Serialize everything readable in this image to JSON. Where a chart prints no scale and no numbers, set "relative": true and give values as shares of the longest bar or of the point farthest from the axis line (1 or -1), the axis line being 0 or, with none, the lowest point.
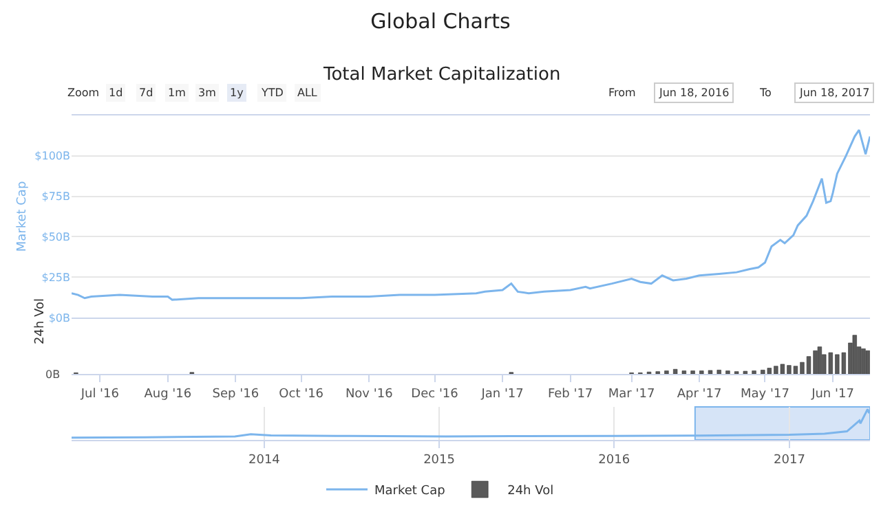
{
  "chart_data": [
    {
      "type": "line",
      "title": "Global Charts",
      "subtitle": "Total Market Capitalization",
      "ylabel": "Market Cap",
      "annotations": [
        "Zoom",
        "1d",
        "7d",
        "1m",
        "3m",
        "1y",
        "YTD",
        "ALL",
        "From",
        "Jun 18, 2016",
        "To",
        "Jun 18, 2017"
      ],
      "xlim": [
        "2016-06-18",
        "2017-06-18"
      ],
      "ylim": [
        0,
        125
      ],
      "yticks": [
        {
          "value": 0,
          "label": "$0B"
        },
        {
          "value": 25,
          "label": "$25B"
        },
        {
          "value": 50,
          "label": "$50B"
        },
        {
          "value": 75,
          "label": "$75B"
        },
        {
          "value": 100,
          "label": "$100B"
        }
      ],
      "tick_labels": "y",
      "grid": "y",
      "legend": "bottom",
      "marker": "none",
      "x": [
        "2016-06-18",
        "2016-06-21",
        "2016-06-24",
        "2016-06-27",
        "2016-07-10",
        "2016-07-25",
        "2016-08-01",
        "2016-08-03",
        "2016-08-15",
        "2016-09-01",
        "2016-09-15",
        "2016-10-01",
        "2016-10-15",
        "2016-11-01",
        "2016-11-15",
        "2016-12-01",
        "2016-12-20",
        "2016-12-24",
        "2017-01-01",
        "2017-01-05",
        "2017-01-08",
        "2017-01-13",
        "2017-01-20",
        "2017-02-01",
        "2017-02-08",
        "2017-02-10",
        "2017-02-20",
        "2017-03-01",
        "2017-03-05",
        "2017-03-10",
        "2017-03-15",
        "2017-03-20",
        "2017-03-26",
        "2017-04-01",
        "2017-04-10",
        "2017-04-18",
        "2017-04-24",
        "2017-04-28",
        "2017-05-01",
        "2017-05-04",
        "2017-05-08",
        "2017-05-10",
        "2017-05-14",
        "2017-05-16",
        "2017-05-20",
        "2017-05-23",
        "2017-05-27",
        "2017-05-29",
        "2017-05-31",
        "2017-06-01",
        "2017-06-03",
        "2017-06-07",
        "2017-06-11",
        "2017-06-13",
        "2017-06-16",
        "2017-06-18"
      ],
      "series": [
        {
          "name": "Market Cap",
          "color": "#7cb5ec",
          "values": [
            15,
            14,
            12,
            13,
            14,
            13,
            13,
            11,
            12,
            12,
            12,
            12,
            13,
            13,
            14,
            14,
            15,
            16,
            17,
            21,
            16,
            15,
            16,
            17,
            19,
            18,
            21,
            24,
            22,
            21,
            26,
            23,
            24,
            26,
            27,
            28,
            30,
            31,
            34,
            44,
            48,
            46,
            51,
            57,
            63,
            72,
            86,
            71,
            72,
            77,
            89,
            100,
            112,
            116,
            101,
            112
          ]
        }
      ]
    },
    {
      "type": "bar",
      "ylabel": "24h Vol",
      "relative": true,
      "annotations": [
        "0B"
      ],
      "legend": "bottom",
      "tick_labels": "x",
      "xlim": [
        "2016-06-18",
        "2017-06-18"
      ],
      "xticks": [
        {
          "value": "2016-07-01",
          "label": "Jul '16"
        },
        {
          "value": "2016-08-01",
          "label": "Aug '16"
        },
        {
          "value": "2016-09-01",
          "label": "Sep '16"
        },
        {
          "value": "2016-10-01",
          "label": "Oct '16"
        },
        {
          "value": "2016-11-01",
          "label": "Nov '16"
        },
        {
          "value": "2016-12-01",
          "label": "Dec '16"
        },
        {
          "value": "2017-01-01",
          "label": "Jan '17"
        },
        {
          "value": "2017-02-01",
          "label": "Feb '17"
        },
        {
          "value": "2017-03-01",
          "label": "Mar '17"
        },
        {
          "value": "2017-04-01",
          "label": "Apr '17"
        },
        {
          "value": "2017-05-01",
          "label": "May '17"
        },
        {
          "value": "2017-06-01",
          "label": "Jun '17"
        }
      ],
      "x": [
        "2016-06-20",
        "2016-08-12",
        "2017-01-05",
        "2017-03-01",
        "2017-03-05",
        "2017-03-09",
        "2017-03-13",
        "2017-03-17",
        "2017-03-21",
        "2017-03-25",
        "2017-03-29",
        "2017-04-02",
        "2017-04-06",
        "2017-04-10",
        "2017-04-14",
        "2017-04-18",
        "2017-04-22",
        "2017-04-26",
        "2017-04-30",
        "2017-05-03",
        "2017-05-06",
        "2017-05-09",
        "2017-05-12",
        "2017-05-15",
        "2017-05-18",
        "2017-05-21",
        "2017-05-24",
        "2017-05-26",
        "2017-05-28",
        "2017-05-31",
        "2017-06-03",
        "2017-06-06",
        "2017-06-09",
        "2017-06-11",
        "2017-06-13",
        "2017-06-15",
        "2017-06-17"
      ],
      "series": [
        {
          "name": "24h Vol",
          "color": "#5a5a5a",
          "values": [
            0.03,
            0.04,
            0.04,
            0.03,
            0.03,
            0.05,
            0.06,
            0.08,
            0.12,
            0.08,
            0.08,
            0.08,
            0.09,
            0.1,
            0.08,
            0.06,
            0.07,
            0.08,
            0.1,
            0.15,
            0.2,
            0.25,
            0.22,
            0.2,
            0.3,
            0.45,
            0.6,
            0.7,
            0.5,
            0.55,
            0.5,
            0.55,
            0.8,
            1.0,
            0.7,
            0.65,
            0.6
          ]
        }
      ]
    },
    {
      "type": "line",
      "relative": true,
      "tick_labels": "x",
      "grid": "x",
      "xlim": [
        "2012-11-25",
        "2017-06-18"
      ],
      "xticks": [
        {
          "value": "2014-01-01",
          "label": "2014"
        },
        {
          "value": "2015-01-01",
          "label": "2015"
        },
        {
          "value": "2016-01-01",
          "label": "2016"
        },
        {
          "value": "2017-01-01",
          "label": "2017"
        }
      ],
      "bands": [
        {
          "axis": "x",
          "from": "2016-06-18",
          "to": "2017-06-18",
          "color": "#d6e4f7"
        }
      ],
      "x": [
        "2012-11-25",
        "2013-04-28",
        "2013-11-01",
        "2013-12-04",
        "2014-01-15",
        "2014-06-01",
        "2015-01-15",
        "2015-06-01",
        "2016-01-01",
        "2016-06-18",
        "2017-01-01",
        "2017-03-15",
        "2017-05-01",
        "2017-05-27",
        "2017-05-29",
        "2017-06-13",
        "2017-06-16",
        "2017-06-18"
      ],
      "series": [
        {
          "color": "#7cb5ec",
          "values": [
            0.0,
            0.01,
            0.04,
            0.12,
            0.08,
            0.06,
            0.04,
            0.05,
            0.06,
            0.07,
            0.1,
            0.14,
            0.22,
            0.6,
            0.5,
            1.0,
            0.86,
            0.96
          ]
        }
      ]
    }
  ]
}
